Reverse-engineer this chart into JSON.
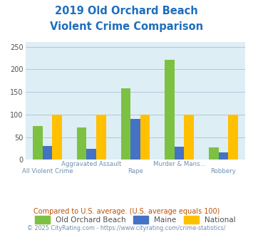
{
  "title_line1": "2019 Old Orchard Beach",
  "title_line2": "Violent Crime Comparison",
  "categories": [
    "All Violent Crime",
    "Aggravated Assault",
    "Rape",
    "Murder & Mans...",
    "Robbery"
  ],
  "series": {
    "Old Orchard Beach": [
      75,
      72,
      158,
      222,
      28
    ],
    "Maine": [
      30,
      25,
      90,
      29,
      17
    ],
    "National": [
      100,
      100,
      100,
      100,
      100
    ]
  },
  "colors": {
    "Old Orchard Beach": "#7dc142",
    "Maine": "#4472c4",
    "National": "#ffc000"
  },
  "ylim": [
    0,
    260
  ],
  "yticks": [
    0,
    50,
    100,
    150,
    200,
    250
  ],
  "bg_color": "#ddeef5",
  "grid_color": "#b0c8d8",
  "title_color": "#1f6fbd",
  "xlabel_color": "#7090b0",
  "legend_label_color": "#505050",
  "footnote1": "Compared to U.S. average. (U.S. average equals 100)",
  "footnote2": "© 2025 CityRating.com - https://www.cityrating.com/crime-statistics/",
  "footnote1_color": "#c05000",
  "footnote2_color": "#7090b0"
}
